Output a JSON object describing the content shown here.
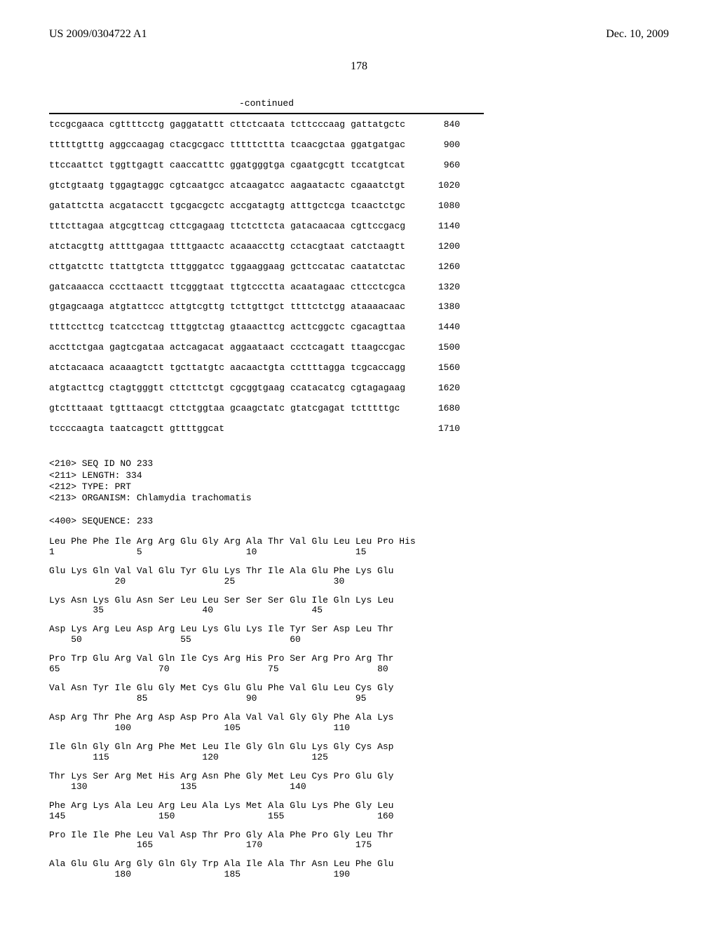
{
  "header": {
    "left": "US 2009/0304722 A1",
    "right": "Dec. 10, 2009"
  },
  "page_number": "178",
  "continued_label": "-continued",
  "dna_rows": [
    {
      "blocks": [
        "tccgcgaaca",
        "cgttttcctg",
        "gaggatattt",
        "cttctcaata",
        "tcttcccaag",
        "gattatgctc"
      ],
      "num": "840"
    },
    {
      "blocks": [
        "tttttgtttg",
        "aggccaagag",
        "ctacgcgacc",
        "tttttcttta",
        "tcaacgctaa",
        "ggatgatgac"
      ],
      "num": "900"
    },
    {
      "blocks": [
        "ttccaattct",
        "tggttgagtt",
        "caaccatttc",
        "ggatgggtga",
        "cgaatgcgtt",
        "tccatgtcat"
      ],
      "num": "960"
    },
    {
      "blocks": [
        "gtctgtaatg",
        "tggagtaggc",
        "cgtcaatgcc",
        "atcaagatcc",
        "aagaatactc",
        "cgaaatctgt"
      ],
      "num": "1020"
    },
    {
      "blocks": [
        "gatattctta",
        "acgatacctt",
        "tgcgacgctc",
        "accgatagtg",
        "atttgctcga",
        "tcaactctgc"
      ],
      "num": "1080"
    },
    {
      "blocks": [
        "tttcttagaa",
        "atgcgttcag",
        "cttcgagaag",
        "ttctcttcta",
        "gatacaacaa",
        "cgttccgacg"
      ],
      "num": "1140"
    },
    {
      "blocks": [
        "atctacgttg",
        "attttgagaa",
        "ttttgaactc",
        "acaaaccttg",
        "cctacgtaat",
        "catctaagtt"
      ],
      "num": "1200"
    },
    {
      "blocks": [
        "cttgatcttc",
        "ttattgtcta",
        "tttgggatcc",
        "tggaaggaag",
        "gcttccatac",
        "caatatctac"
      ],
      "num": "1260"
    },
    {
      "blocks": [
        "gatcaaacca",
        "cccttaactt",
        "ttcgggtaat",
        "ttgtccctta",
        "acaatagaac",
        "cttcctcgca"
      ],
      "num": "1320"
    },
    {
      "blocks": [
        "gtgagcaaga",
        "atgtattccc",
        "attgtcgttg",
        "tcttgttgct",
        "ttttctctgg",
        "ataaaacaac"
      ],
      "num": "1380"
    },
    {
      "blocks": [
        "ttttccttcg",
        "tcatcctcag",
        "tttggtctag",
        "gtaaacttcg",
        "acttcggctc",
        "cgacagttaa"
      ],
      "num": "1440"
    },
    {
      "blocks": [
        "accttctgaa",
        "gagtcgataa",
        "actcagacat",
        "aggaataact",
        "ccctcagatt",
        "ttaagccgac"
      ],
      "num": "1500"
    },
    {
      "blocks": [
        "atctacaaca",
        "acaaagtctt",
        "tgcttatgtc",
        "aacaactgta",
        "ccttttagga",
        "tcgcaccagg"
      ],
      "num": "1560"
    },
    {
      "blocks": [
        "atgtacttcg",
        "ctagtgggtt",
        "cttcttctgt",
        "cgcggtgaag",
        "ccatacatcg",
        "cgtagagaag"
      ],
      "num": "1620"
    },
    {
      "blocks": [
        "gtctttaaat",
        "tgtttaacgt",
        "cttctggtaa",
        "gcaagctatc",
        "gtatcgagat",
        "tctttttgc"
      ],
      "num": "1680"
    },
    {
      "blocks": [
        "tccccaagta",
        "taatcagctt",
        "gttttggcat",
        "",
        "",
        ""
      ],
      "num": "1710"
    }
  ],
  "meta": {
    "line1": "<210> SEQ ID NO 233",
    "line2": "<211> LENGTH: 334",
    "line3": "<212> TYPE: PRT",
    "line4": "<213> ORGANISM: Chlamydia trachomatis",
    "line5": "<400> SEQUENCE: 233"
  },
  "protein_rows": [
    {
      "aa": "Leu Phe Phe Ile Arg Arg Glu Gly Arg Ala Thr Val Glu Leu Leu Pro His",
      "nums": "1               5                   10                  15"
    },
    {
      "aa": "Glu Lys Gln Val Val Glu Tyr Glu Lys Thr Ile Ala Glu Phe Lys Glu",
      "nums": "            20                  25                  30"
    },
    {
      "aa": "Lys Asn Lys Glu Asn Ser Leu Leu Ser Ser Ser Glu Ile Gln Lys Leu",
      "nums": "        35                  40                  45"
    },
    {
      "aa": "Asp Lys Arg Leu Asp Arg Leu Lys Glu Lys Ile Tyr Ser Asp Leu Thr",
      "nums": "    50                  55                  60"
    },
    {
      "aa": "Pro Trp Glu Arg Val Gln Ile Cys Arg His Pro Ser Arg Pro Arg Thr",
      "nums": "65                  70                  75                  80"
    },
    {
      "aa": "Val Asn Tyr Ile Glu Gly Met Cys Glu Glu Phe Val Glu Leu Cys Gly",
      "nums": "                85                  90                  95"
    },
    {
      "aa": "Asp Arg Thr Phe Arg Asp Asp Pro Ala Val Val Gly Gly Phe Ala Lys",
      "nums": "            100                 105                 110"
    },
    {
      "aa": "Ile Gln Gly Gln Arg Phe Met Leu Ile Gly Gln Glu Lys Gly Cys Asp",
      "nums": "        115                 120                 125"
    },
    {
      "aa": "Thr Lys Ser Arg Met His Arg Asn Phe Gly Met Leu Cys Pro Glu Gly",
      "nums": "    130                 135                 140"
    },
    {
      "aa": "Phe Arg Lys Ala Leu Arg Leu Ala Lys Met Ala Glu Lys Phe Gly Leu",
      "nums": "145                 150                 155                 160"
    },
    {
      "aa": "Pro Ile Ile Phe Leu Val Asp Thr Pro Gly Ala Phe Pro Gly Leu Thr",
      "nums": "                165                 170                 175"
    },
    {
      "aa": "Ala Glu Glu Arg Gly Gln Gly Trp Ala Ile Ala Thr Asn Leu Phe Glu",
      "nums": "            180                 185                 190"
    }
  ]
}
